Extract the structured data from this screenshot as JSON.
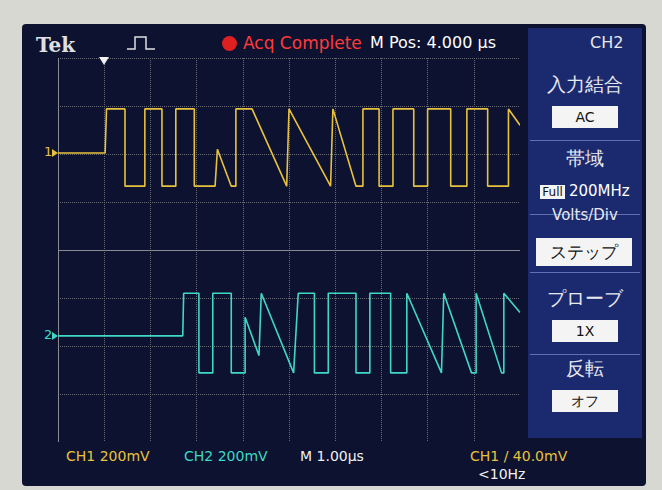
{
  "screen": {
    "brand": "Tek",
    "status": "Acq Complete",
    "m_pos": "M Pos: 4.000 µs",
    "menu_title": "CH2",
    "menu": [
      {
        "label": "入力結合",
        "value": "AC"
      },
      {
        "label": "帯域",
        "prefix": "Full",
        "value": "200MHz"
      },
      {
        "label": "Volts/Div",
        "value": "ステップ"
      },
      {
        "label": "プローブ",
        "value": "1X"
      },
      {
        "label": "反転",
        "value": "オフ"
      }
    ],
    "bottom": [
      "CH1 200mV",
      "CH2 200mV",
      "M 1.00µs",
      "CH1 / 40.0mV",
      "<10Hz"
    ]
  },
  "chart_data": {
    "type": "line",
    "xlim": [
      0,
      10
    ],
    "ylim": [
      -4,
      4
    ],
    "xticks": [
      0,
      1,
      2,
      3,
      4,
      5,
      6,
      7,
      8,
      9,
      10
    ],
    "yticks": [
      -4,
      -3,
      -2,
      -1,
      0,
      1,
      2,
      3,
      4
    ],
    "grid": true,
    "tick_labels": false,
    "trigger_x": 1.0,
    "series": [
      {
        "name": "CH1",
        "color": "#e8c23e",
        "ground": 2.02,
        "ground_label": "1",
        "x": [
          0,
          1.02,
          1.05,
          1.45,
          1.45,
          1.88,
          1.88,
          2.25,
          2.25,
          2.55,
          2.55,
          2.95,
          2.95,
          3.4,
          3.45,
          3.75,
          3.85,
          3.85,
          4.2,
          4.95,
          5.0,
          5.9,
          5.95,
          6.45,
          6.6,
          6.6,
          6.95,
          6.95,
          7.25,
          7.25,
          7.7,
          7.7,
          8.0,
          8.0,
          8.5,
          8.5,
          8.85,
          8.85,
          9.3,
          9.3,
          9.75,
          9.75,
          10
        ],
        "values": [
          2.02,
          2.02,
          2.94,
          2.94,
          1.33,
          1.33,
          2.94,
          2.94,
          1.33,
          1.33,
          2.94,
          2.94,
          1.33,
          1.33,
          2.1,
          1.33,
          1.33,
          2.94,
          2.94,
          1.33,
          2.94,
          1.33,
          2.94,
          1.33,
          1.33,
          2.94,
          2.94,
          1.33,
          1.33,
          2.94,
          2.94,
          1.33,
          1.33,
          2.94,
          2.94,
          1.33,
          1.33,
          2.94,
          2.94,
          1.33,
          1.33,
          2.94,
          2.6
        ]
      },
      {
        "name": "CH2",
        "color": "#3fd8c6",
        "ground": -1.79,
        "ground_label": "2",
        "x": [
          0,
          2.7,
          2.72,
          3.05,
          3.05,
          3.35,
          3.35,
          3.75,
          3.75,
          4.05,
          4.05,
          4.35,
          4.4,
          5.1,
          5.2,
          5.55,
          5.55,
          5.85,
          5.85,
          6.45,
          6.45,
          6.75,
          6.75,
          7.2,
          7.2,
          7.55,
          7.55,
          8.3,
          8.35,
          8.95,
          9.05,
          9.05,
          9.6,
          9.65,
          9.65,
          10
        ],
        "values": [
          -1.79,
          -1.79,
          -0.9,
          -0.9,
          -2.56,
          -2.56,
          -0.9,
          -0.9,
          -2.56,
          -2.56,
          -1.4,
          -2.2,
          -0.9,
          -2.56,
          -0.9,
          -0.9,
          -2.56,
          -2.56,
          -0.9,
          -0.9,
          -2.56,
          -2.56,
          -0.9,
          -0.9,
          -2.56,
          -2.56,
          -0.9,
          -2.56,
          -0.9,
          -2.56,
          -2.56,
          -0.9,
          -2.56,
          -2.56,
          -0.9,
          -1.3
        ]
      }
    ]
  }
}
